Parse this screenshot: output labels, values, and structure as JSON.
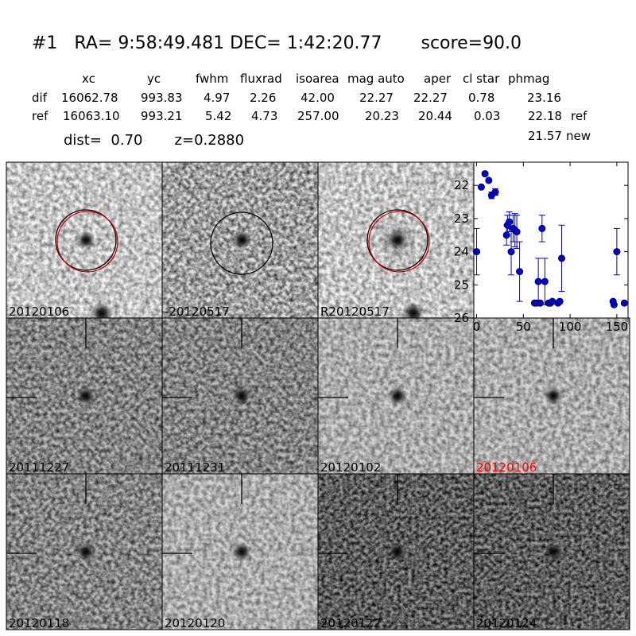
{
  "header": {
    "id": "#1",
    "ra_label": "RA=",
    "ra": "9:58:49.481",
    "dec_label": "DEC=",
    "dec": "1:42:20.77",
    "score_label": "score=",
    "score": "90.0"
  },
  "table": {
    "columns": [
      "xc",
      "yc",
      "fwhm",
      "fluxrad",
      "isoarea",
      "mag auto",
      "aper",
      "cl star",
      "phmag"
    ],
    "rows": [
      {
        "label": "dif",
        "values": [
          "16062.78",
          "993.83",
          "4.97",
          "2.26",
          "42.00",
          "22.27",
          "22.27",
          "0.78",
          "23.16"
        ],
        "suffix": ""
      },
      {
        "label": "ref",
        "values": [
          "16063.10",
          "993.21",
          "5.42",
          "4.73",
          "257.00",
          "20.23",
          "20.44",
          "0.03",
          "22.18"
        ],
        "suffix": "ref"
      }
    ],
    "extra": {
      "value": "21.57",
      "suffix": "new"
    }
  },
  "summary": {
    "dist_label": "dist=",
    "dist": "0.70",
    "z_label": "z=",
    "z": "0.2880"
  },
  "panels": [
    {
      "label": "20120106",
      "label_color": "#000000",
      "style": "ref"
    },
    {
      "label": "-20120517",
      "label_color": "#000000",
      "style": "dif"
    },
    {
      "label": "R20120517",
      "label_color": "#000000",
      "style": "ref"
    },
    {
      "label": "20111227",
      "label_color": "#000000",
      "style": "noisy"
    },
    {
      "label": "20111231",
      "label_color": "#000000",
      "style": "noisy"
    },
    {
      "label": "20120102",
      "label_color": "#000000",
      "style": "light"
    },
    {
      "label": "20120106",
      "label_color": "#ff0000",
      "style": "light"
    },
    {
      "label": "20120118",
      "label_color": "#000000",
      "style": "noisy"
    },
    {
      "label": "20120120",
      "label_color": "#000000",
      "style": "light"
    },
    {
      "label": "20120122",
      "label_color": "#000000",
      "style": "dark"
    },
    {
      "label": "20120124",
      "label_color": "#000000",
      "style": "dark"
    }
  ],
  "chart_data": {
    "type": "scatter",
    "xlim": [
      -3,
      162
    ],
    "ylim": [
      26,
      21.3
    ],
    "xticks": [
      0,
      50,
      100,
      150
    ],
    "yticks": [
      22,
      23,
      24,
      25,
      26
    ],
    "color": "#0000cc",
    "points": [
      {
        "x": 0,
        "y": 24.0,
        "err": 0.7
      },
      {
        "x": 5,
        "y": 22.05,
        "err": 0
      },
      {
        "x": 9,
        "y": 21.65,
        "err": 0
      },
      {
        "x": 13,
        "y": 21.85,
        "err": 0
      },
      {
        "x": 16,
        "y": 22.3,
        "err": 0.1
      },
      {
        "x": 20,
        "y": 22.2,
        "err": 0.1
      },
      {
        "x": 32,
        "y": 23.5,
        "err": 0.3
      },
      {
        "x": 33,
        "y": 23.2,
        "err": 0.3
      },
      {
        "x": 35,
        "y": 23.1,
        "err": 0.3
      },
      {
        "x": 37,
        "y": 24.0,
        "err": 0.7
      },
      {
        "x": 39,
        "y": 23.3,
        "err": 0.4
      },
      {
        "x": 41,
        "y": 23.35,
        "err": 0.5
      },
      {
        "x": 43,
        "y": 23.4,
        "err": 0.5
      },
      {
        "x": 46,
        "y": 24.6,
        "err": 0.9
      },
      {
        "x": 62,
        "y": 25.55,
        "err": 0
      },
      {
        "x": 64,
        "y": 25.55,
        "err": 0
      },
      {
        "x": 66,
        "y": 24.9,
        "err": 0.7
      },
      {
        "x": 68,
        "y": 25.55,
        "err": 0
      },
      {
        "x": 70,
        "y": 23.3,
        "err": 0.4
      },
      {
        "x": 73,
        "y": 24.9,
        "err": 0.7
      },
      {
        "x": 77,
        "y": 25.55,
        "err": 0
      },
      {
        "x": 79,
        "y": 25.55,
        "err": 0
      },
      {
        "x": 81,
        "y": 25.5,
        "err": 0
      },
      {
        "x": 87,
        "y": 25.55,
        "err": 0
      },
      {
        "x": 89,
        "y": 25.5,
        "err": 0
      },
      {
        "x": 91,
        "y": 24.2,
        "err": 1.0
      },
      {
        "x": 146,
        "y": 25.5,
        "err": 0
      },
      {
        "x": 147,
        "y": 25.6,
        "err": 0
      },
      {
        "x": 150,
        "y": 24.0,
        "err": 0.7
      },
      {
        "x": 158,
        "y": 25.55,
        "err": 0
      }
    ]
  }
}
